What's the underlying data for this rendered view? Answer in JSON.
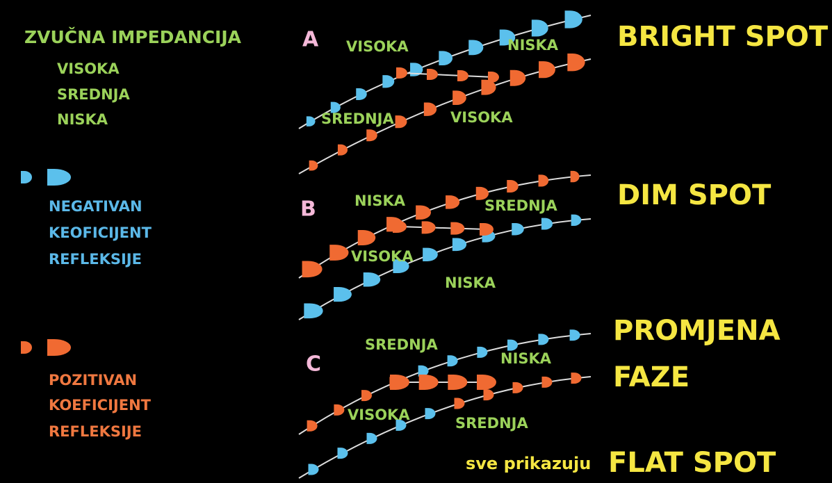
{
  "legend": {
    "title": "ZVUČNA IMPEDANCIJA",
    "impedances": [
      "VISOKA",
      "SREDNJA",
      "NISKA"
    ],
    "negative": [
      "NEGATIVAN",
      "KEOFICIJENT",
      "REFLEKSIJE"
    ],
    "positive": [
      "POZITIVAN",
      "KOEFICIJENT",
      "REFLEKSIJE"
    ]
  },
  "panels": [
    {
      "label": "A",
      "labels": [
        "VISOKA",
        "NISKA",
        "SREDNJA",
        "VISOKA"
      ],
      "title_lines": [
        "BRIGHT SPOT"
      ]
    },
    {
      "label": "B",
      "labels": [
        "NISKA",
        "SREDNJA",
        "VISOKA",
        "NISKA"
      ],
      "title_lines": [
        "DIM SPOT"
      ]
    },
    {
      "label": "C",
      "labels": [
        "SREDNJA",
        "NISKA",
        "VISOKA",
        "SREDNJA"
      ],
      "title_lines": [
        "PROMJENA",
        "FAZE"
      ]
    }
  ],
  "footer": {
    "prefix": "sve prikazuju",
    "title": "FLAT SPOT"
  }
}
